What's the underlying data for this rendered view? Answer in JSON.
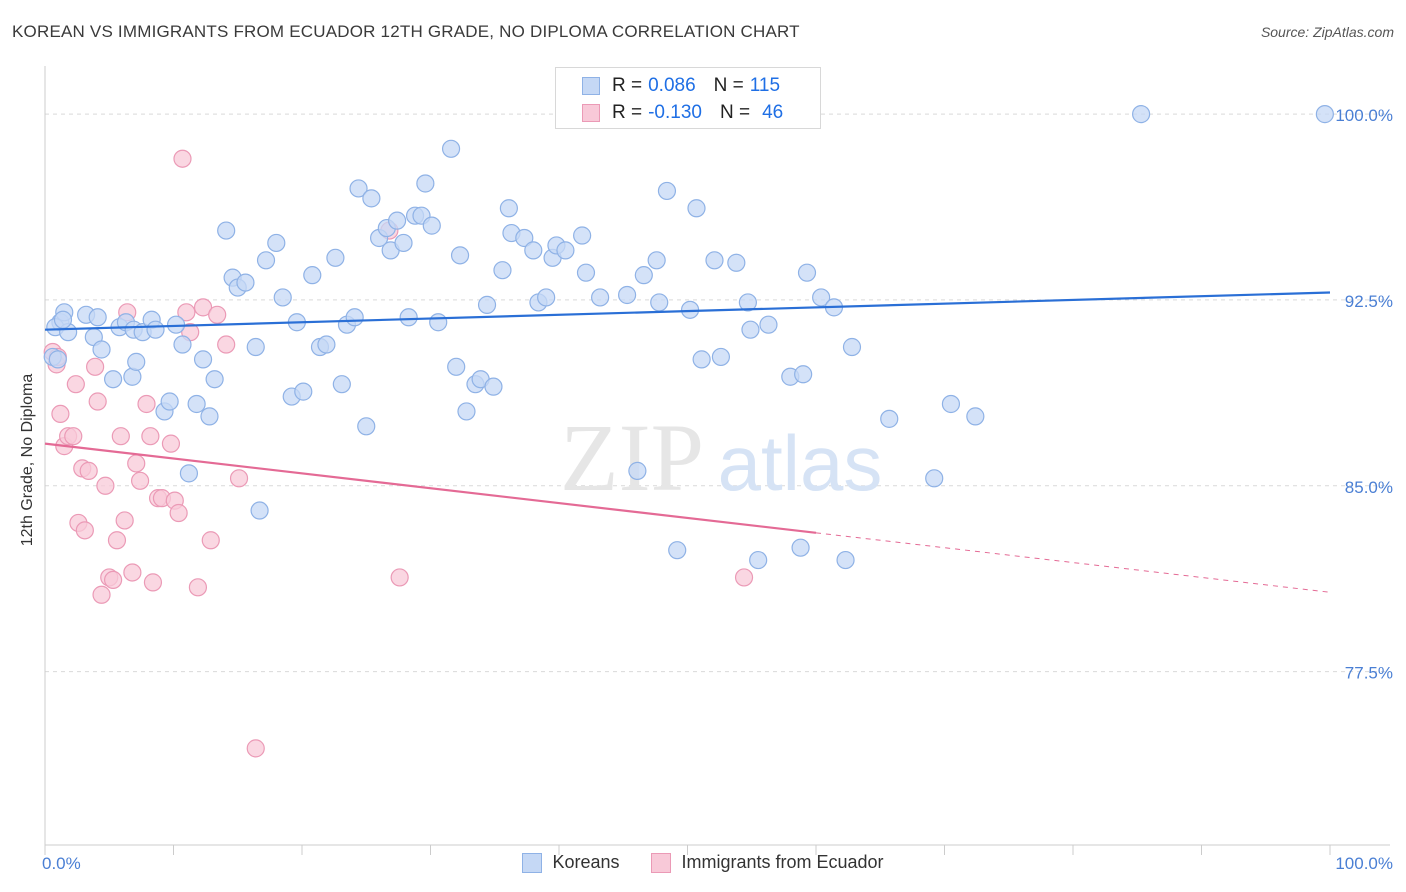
{
  "title": "KOREAN VS IMMIGRANTS FROM ECUADOR 12TH GRADE, NO DIPLOMA CORRELATION CHART",
  "source": "Source: ZipAtlas.com",
  "watermark": {
    "zip": "ZIP",
    "atlas": "atlas"
  },
  "legend": {
    "rows": [
      {
        "r_label": "R =",
        "r_value": "0.086",
        "n_label": "N =",
        "n_value": "115"
      },
      {
        "r_label": "R =",
        "r_value": "-0.130",
        "n_label": "N =",
        "n_value": "46"
      }
    ]
  },
  "colors": {
    "blue_fill": "#c5d8f5",
    "blue_stroke": "#8fb2e6",
    "blue_line": "#2a6fd6",
    "pink_fill": "#f8c9d8",
    "pink_stroke": "#eb9ab6",
    "pink_line": "#e46a95",
    "tick_label": "#4a7fd4",
    "grid": "#d9d9d9"
  },
  "chart_data": {
    "type": "scatter",
    "title": "KOREAN VS IMMIGRANTS FROM ECUADOR 12TH GRADE, NO DIPLOMA CORRELATION CHART",
    "xlabel": "",
    "ylabel": "12th Grade, No Diploma",
    "xlim": [
      0,
      100
    ],
    "ylim": [
      70.5,
      101.7
    ],
    "x_tick_labels": [
      "0.0%",
      "100.0%"
    ],
    "y_ticks": [
      77.5,
      85.0,
      92.5,
      100.0
    ],
    "y_tick_labels": [
      "77.5%",
      "85.0%",
      "92.5%",
      "100.0%"
    ],
    "grid": true,
    "legend_position": "top-center",
    "series": [
      {
        "name": "Koreans",
        "r": 0.086,
        "n": 115,
        "trend": {
          "x": [
            0,
            100
          ],
          "y": [
            91.3,
            92.8
          ],
          "dashed_from": null
        },
        "points": [
          [
            1.2,
            91.6
          ],
          [
            1.5,
            92.0
          ],
          [
            0.8,
            91.4
          ],
          [
            0.6,
            90.2
          ],
          [
            1.8,
            91.2
          ],
          [
            3.2,
            91.9
          ],
          [
            3.8,
            91.0
          ],
          [
            4.1,
            91.8
          ],
          [
            4.4,
            90.5
          ],
          [
            5.3,
            89.3
          ],
          [
            5.8,
            91.4
          ],
          [
            6.3,
            91.6
          ],
          [
            6.8,
            89.4
          ],
          [
            6.9,
            91.3
          ],
          [
            7.1,
            90.0
          ],
          [
            7.6,
            91.2
          ],
          [
            8.3,
            91.7
          ],
          [
            8.6,
            91.3
          ],
          [
            9.3,
            88.0
          ],
          [
            9.7,
            88.4
          ],
          [
            10.2,
            91.5
          ],
          [
            10.7,
            90.7
          ],
          [
            11.2,
            85.5
          ],
          [
            11.8,
            88.3
          ],
          [
            12.3,
            90.1
          ],
          [
            12.8,
            87.8
          ],
          [
            13.2,
            89.3
          ],
          [
            14.1,
            95.3
          ],
          [
            14.6,
            93.4
          ],
          [
            15.0,
            93.0
          ],
          [
            15.6,
            93.2
          ],
          [
            16.4,
            90.6
          ],
          [
            16.7,
            84.0
          ],
          [
            17.2,
            94.1
          ],
          [
            18.0,
            94.8
          ],
          [
            18.5,
            92.6
          ],
          [
            19.2,
            88.6
          ],
          [
            19.6,
            91.6
          ],
          [
            20.1,
            88.8
          ],
          [
            20.8,
            93.5
          ],
          [
            21.4,
            90.6
          ],
          [
            21.9,
            90.7
          ],
          [
            22.6,
            94.2
          ],
          [
            23.1,
            89.1
          ],
          [
            23.5,
            91.5
          ],
          [
            24.1,
            91.8
          ],
          [
            24.4,
            97.0
          ],
          [
            25.0,
            87.4
          ],
          [
            25.4,
            96.6
          ],
          [
            26.0,
            95.0
          ],
          [
            26.6,
            95.4
          ],
          [
            26.9,
            94.5
          ],
          [
            27.4,
            95.7
          ],
          [
            27.9,
            94.8
          ],
          [
            28.3,
            91.8
          ],
          [
            28.8,
            95.9
          ],
          [
            29.3,
            95.9
          ],
          [
            29.6,
            97.2
          ],
          [
            30.1,
            95.5
          ],
          [
            30.6,
            91.6
          ],
          [
            31.6,
            98.6
          ],
          [
            32.0,
            89.8
          ],
          [
            32.3,
            94.3
          ],
          [
            32.8,
            88.0
          ],
          [
            33.5,
            89.1
          ],
          [
            33.9,
            89.3
          ],
          [
            34.4,
            92.3
          ],
          [
            34.9,
            89.0
          ],
          [
            35.6,
            93.7
          ],
          [
            36.1,
            96.2
          ],
          [
            36.3,
            95.2
          ],
          [
            37.3,
            95.0
          ],
          [
            38.0,
            94.5
          ],
          [
            38.4,
            92.4
          ],
          [
            39.0,
            92.6
          ],
          [
            39.5,
            94.2
          ],
          [
            39.8,
            94.7
          ],
          [
            40.5,
            94.5
          ],
          [
            40.8,
            100.1
          ],
          [
            41.8,
            95.1
          ],
          [
            42.1,
            93.6
          ],
          [
            43.2,
            92.6
          ],
          [
            45.3,
            92.7
          ],
          [
            46.1,
            85.6
          ],
          [
            46.6,
            93.5
          ],
          [
            47.6,
            94.1
          ],
          [
            47.8,
            92.4
          ],
          [
            48.4,
            96.9
          ],
          [
            49.2,
            82.4
          ],
          [
            50.2,
            92.1
          ],
          [
            50.7,
            96.2
          ],
          [
            51.1,
            90.1
          ],
          [
            52.1,
            94.1
          ],
          [
            52.6,
            90.2
          ],
          [
            53.8,
            94.0
          ],
          [
            54.7,
            92.4
          ],
          [
            54.9,
            91.3
          ],
          [
            55.5,
            82.0
          ],
          [
            56.3,
            91.5
          ],
          [
            58.0,
            89.4
          ],
          [
            58.8,
            82.5
          ],
          [
            59.0,
            89.5
          ],
          [
            59.3,
            93.6
          ],
          [
            60.4,
            92.6
          ],
          [
            61.4,
            92.2
          ],
          [
            62.3,
            82.0
          ],
          [
            62.8,
            90.6
          ],
          [
            65.7,
            87.7
          ],
          [
            69.2,
            85.3
          ],
          [
            70.5,
            88.3
          ],
          [
            72.4,
            87.8
          ],
          [
            85.3,
            100.0
          ],
          [
            99.6,
            100.0
          ],
          [
            1.0,
            90.1
          ],
          [
            1.4,
            91.7
          ]
        ]
      },
      {
        "name": "Immigrants from Ecuador",
        "r": -0.13,
        "n": 46,
        "trend": {
          "x": [
            0,
            100
          ],
          "y": [
            86.7,
            80.7
          ],
          "dashed_from": 60
        },
        "points": [
          [
            0.6,
            90.4
          ],
          [
            0.9,
            89.9
          ],
          [
            1.2,
            87.9
          ],
          [
            1.5,
            86.6
          ],
          [
            1.8,
            87.0
          ],
          [
            2.2,
            87.0
          ],
          [
            2.4,
            89.1
          ],
          [
            2.6,
            83.5
          ],
          [
            2.9,
            85.7
          ],
          [
            3.1,
            83.2
          ],
          [
            3.4,
            85.6
          ],
          [
            3.9,
            89.8
          ],
          [
            4.1,
            88.4
          ],
          [
            4.4,
            80.6
          ],
          [
            4.7,
            85.0
          ],
          [
            5.0,
            81.3
          ],
          [
            5.3,
            81.2
          ],
          [
            5.6,
            82.8
          ],
          [
            5.9,
            87.0
          ],
          [
            6.2,
            83.6
          ],
          [
            6.4,
            92.0
          ],
          [
            6.8,
            81.5
          ],
          [
            7.1,
            85.9
          ],
          [
            7.4,
            85.2
          ],
          [
            7.9,
            88.3
          ],
          [
            8.2,
            87.0
          ],
          [
            8.4,
            81.1
          ],
          [
            8.8,
            84.5
          ],
          [
            9.1,
            84.5
          ],
          [
            9.8,
            86.7
          ],
          [
            10.1,
            84.4
          ],
          [
            10.4,
            83.9
          ],
          [
            10.7,
            98.2
          ],
          [
            11.0,
            92.0
          ],
          [
            11.3,
            91.2
          ],
          [
            11.9,
            80.9
          ],
          [
            12.3,
            92.2
          ],
          [
            12.9,
            82.8
          ],
          [
            13.4,
            91.9
          ],
          [
            14.1,
            90.7
          ],
          [
            15.1,
            85.3
          ],
          [
            16.4,
            74.4
          ],
          [
            26.8,
            95.3
          ],
          [
            27.6,
            81.3
          ],
          [
            54.4,
            81.3
          ],
          [
            1.0,
            90.2
          ]
        ]
      }
    ]
  }
}
